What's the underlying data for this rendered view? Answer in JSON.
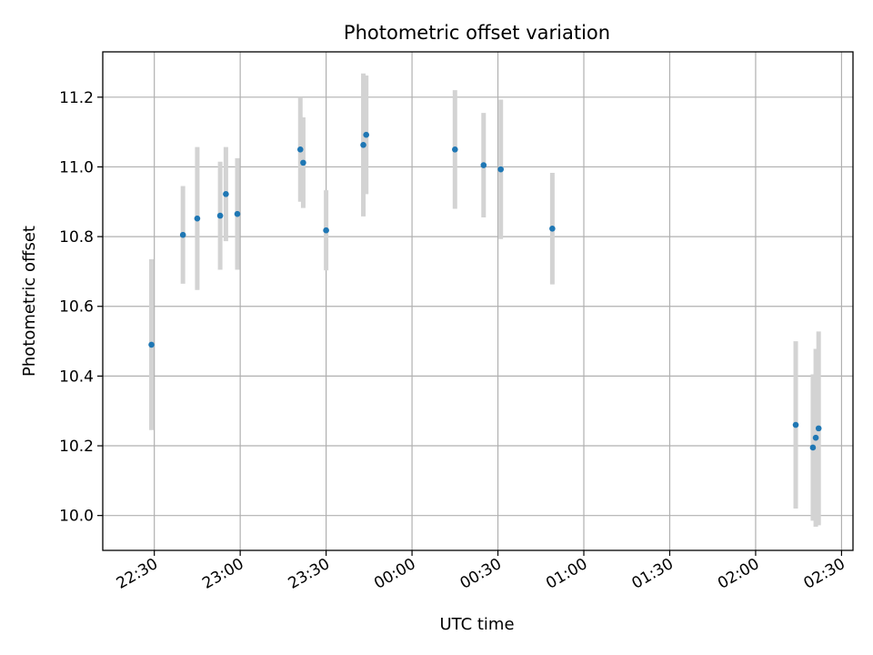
{
  "chart_data": {
    "type": "scatter",
    "title": "Photometric offset variation",
    "xlabel": "UTC time",
    "ylabel": "Photometric offset",
    "x_unit": "UTC time (HH:MM), axis spans 22:12 to 02:34 across midnight",
    "xlim": [
      "22:12",
      "02:34"
    ],
    "ylim": [
      9.9,
      11.33
    ],
    "x_ticks": [
      "22:30",
      "23:00",
      "23:30",
      "00:00",
      "00:30",
      "01:00",
      "01:30",
      "02:00",
      "02:30"
    ],
    "y_ticks": [
      "10.0",
      "10.2",
      "10.4",
      "10.6",
      "10.8",
      "11.0",
      "11.2"
    ],
    "grid": true,
    "marker_color": "#1f77b4",
    "errorbar_color": "#d3d3d3",
    "points": [
      {
        "x": "22:29",
        "y": 10.49,
        "err": 0.245
      },
      {
        "x": "22:40",
        "y": 10.805,
        "err": 0.14
      },
      {
        "x": "22:45",
        "y": 10.852,
        "err": 0.205
      },
      {
        "x": "22:53",
        "y": 10.86,
        "err": 0.155
      },
      {
        "x": "22:55",
        "y": 10.922,
        "err": 0.135
      },
      {
        "x": "22:59",
        "y": 10.865,
        "err": 0.16
      },
      {
        "x": "23:21",
        "y": 11.05,
        "err": 0.15
      },
      {
        "x": "23:22",
        "y": 11.012,
        "err": 0.13
      },
      {
        "x": "23:30",
        "y": 10.818,
        "err": 0.115
      },
      {
        "x": "23:43",
        "y": 11.063,
        "err": 0.205
      },
      {
        "x": "23:44",
        "y": 11.092,
        "err": 0.17
      },
      {
        "x": "00:15",
        "y": 11.05,
        "err": 0.17
      },
      {
        "x": "00:25",
        "y": 11.005,
        "err": 0.15
      },
      {
        "x": "00:31",
        "y": 10.993,
        "err": 0.2
      },
      {
        "x": "00:49",
        "y": 10.823,
        "err": 0.16
      },
      {
        "x": "02:14",
        "y": 10.26,
        "err": 0.24
      },
      {
        "x": "02:20",
        "y": 10.195,
        "err": 0.21
      },
      {
        "x": "02:21",
        "y": 10.223,
        "err": 0.255
      },
      {
        "x": "02:22",
        "y": 10.25,
        "err": 0.278
      }
    ]
  }
}
